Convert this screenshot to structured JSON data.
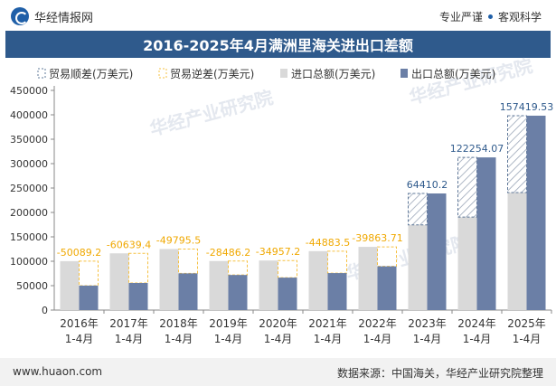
{
  "header": {
    "brand": "华经情报网",
    "slogan_1": "专业严谨",
    "slogan_2": "客观科学",
    "title": "2016-2025年4月满洲里海关进出口差额"
  },
  "footer": {
    "website": "www.huaon.com",
    "source": "数据来源：中国海关，华经产业研究院整理"
  },
  "watermark": "华经产业研究院",
  "colors": {
    "import": "#d9d9d9",
    "export": "#6b7fa6",
    "surplus_border": "#5f7899",
    "deficit_border": "#f6c142",
    "title_bg": "#2f5a8c",
    "surplus_label": "#2f5a8c",
    "deficit_label": "#f0a800"
  },
  "chart_data": {
    "type": "bar",
    "title": "2016-2025年4月满洲里海关进出口差额",
    "categories": [
      "2016年\n1-4月",
      "2017年\n1-4月",
      "2018年\n1-4月",
      "2019年\n1-4月",
      "2020年\n1-4月",
      "2021年\n1-4月",
      "2022年\n1-4月",
      "2023年\n1-4月",
      "2024年\n1-4月",
      "2025年\n1-4月"
    ],
    "series": [
      {
        "name": "进口总额(万美元)",
        "values": [
          100200,
          116200,
          125000,
          100400,
          101500,
          120700,
          129500,
          174500,
          190500,
          240800
        ]
      },
      {
        "name": "出口总额(万美元)",
        "values": [
          50110,
          55560,
          75200,
          71900,
          66500,
          75800,
          89600,
          238900,
          312750,
          398200
        ]
      },
      {
        "name": "贸易顺差(万美元)",
        "values": [
          null,
          null,
          null,
          null,
          null,
          null,
          null,
          64410.2,
          122254.07,
          157419.53
        ]
      },
      {
        "name": "贸易逆差(万美元)",
        "values": [
          -50089.2,
          -60639.4,
          -49795.5,
          -28486.2,
          -34957.2,
          -44883.5,
          -39863.71,
          null,
          null,
          null
        ]
      }
    ],
    "data_labels": [
      "-50089.2",
      "-60639.4",
      "-49795.5",
      "-28486.2",
      "-34957.2",
      "-44883.5",
      "-39863.71",
      "64410.2",
      "122254.07",
      "157419.53"
    ],
    "yticks": [
      "0",
      "50000",
      "100000",
      "150000",
      "200000",
      "250000",
      "300000",
      "350000",
      "400000",
      "450000"
    ],
    "ylim": [
      0,
      450000
    ],
    "legend_position": "top",
    "grid": false
  }
}
